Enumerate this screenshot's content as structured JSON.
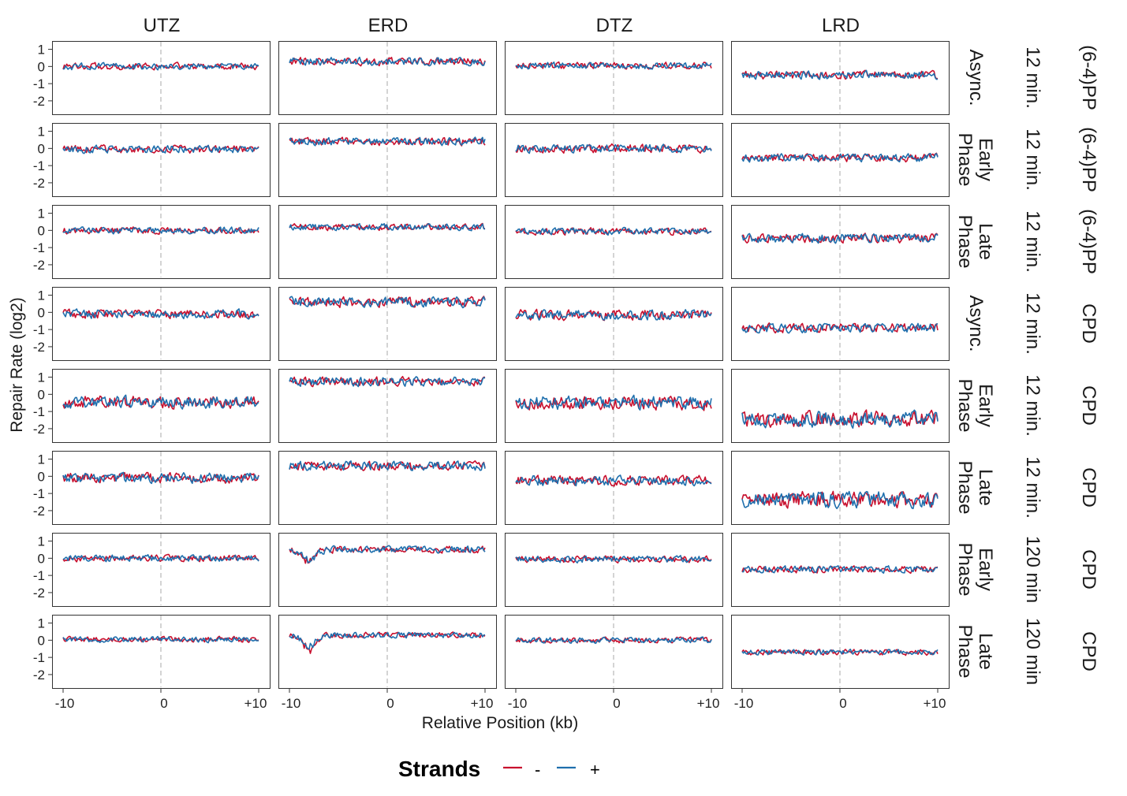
{
  "chart_data": {
    "type": "line",
    "facet_columns": [
      "UTZ",
      "ERD",
      "DTZ",
      "LRD"
    ],
    "facet_rows": [
      {
        "phase": [
          "Async."
        ],
        "time": "12 min.",
        "damage": "(6-4)PP"
      },
      {
        "phase": [
          "Early",
          "Phase"
        ],
        "time": "12 min.",
        "damage": "(6-4)PP"
      },
      {
        "phase": [
          "Late",
          "Phase"
        ],
        "time": "12 min.",
        "damage": "(6-4)PP"
      },
      {
        "phase": [
          "Async."
        ],
        "time": "12 min.",
        "damage": "CPD"
      },
      {
        "phase": [
          "Early",
          "Phase"
        ],
        "time": "12 min.",
        "damage": "CPD"
      },
      {
        "phase": [
          "Late",
          "Phase"
        ],
        "time": "12 min.",
        "damage": "CPD"
      },
      {
        "phase": [
          "Early",
          "Phase"
        ],
        "time": "120 min",
        "damage": "CPD"
      },
      {
        "phase": [
          "Late",
          "Phase"
        ],
        "time": "120 min",
        "damage": "CPD"
      }
    ],
    "xlabel": "Relative Position (kb)",
    "ylabel": "Repair Rate (log2)",
    "xlim": [
      -10,
      10
    ],
    "ylim": [
      -2.6,
      1.3
    ],
    "x_ticks": [
      -10,
      0,
      10
    ],
    "x_tick_labels": [
      "-10",
      "0",
      "+10"
    ],
    "y_ticks": [
      1,
      0,
      -1,
      -2
    ],
    "y_tick_labels": [
      "1",
      "0",
      "-1",
      "-2"
    ],
    "reference_line_x": 0,
    "grid": false,
    "legend": {
      "title": "Strands",
      "position": "bottom",
      "entries": [
        {
          "label": "-",
          "color": "#c8102e"
        },
        {
          "label": "+",
          "color": "#1f6fad"
        }
      ]
    },
    "series_levels": [
      [
        {
          "base": 0.0,
          "amp": 0.12
        },
        {
          "base": 0.3,
          "amp": 0.14
        },
        {
          "base": 0.05,
          "amp": 0.12
        },
        {
          "base": -0.5,
          "amp": 0.14
        }
      ],
      [
        {
          "base": -0.05,
          "amp": 0.14
        },
        {
          "base": 0.4,
          "amp": 0.14
        },
        {
          "base": 0.0,
          "amp": 0.15
        },
        {
          "base": -0.55,
          "amp": 0.14
        }
      ],
      [
        {
          "base": 0.0,
          "amp": 0.12
        },
        {
          "base": 0.2,
          "amp": 0.12
        },
        {
          "base": -0.05,
          "amp": 0.12
        },
        {
          "base": -0.45,
          "amp": 0.16
        }
      ],
      [
        {
          "base": -0.1,
          "amp": 0.16
        },
        {
          "base": 0.6,
          "amp": 0.18
        },
        {
          "base": -0.15,
          "amp": 0.18
        },
        {
          "base": -0.9,
          "amp": 0.16
        }
      ],
      [
        {
          "base": -0.45,
          "amp": 0.22
        },
        {
          "base": 0.75,
          "amp": 0.16
        },
        {
          "base": -0.5,
          "amp": 0.24
        },
        {
          "base": -1.45,
          "amp": 0.28
        }
      ],
      [
        {
          "base": -0.1,
          "amp": 0.18
        },
        {
          "base": 0.6,
          "amp": 0.16
        },
        {
          "base": -0.25,
          "amp": 0.18
        },
        {
          "base": -1.35,
          "amp": 0.28
        }
      ],
      [
        {
          "base": 0.0,
          "amp": 0.12
        },
        {
          "base": 0.5,
          "amp": 0.12,
          "dip": {
            "x": -8,
            "depth": -0.7
          }
        },
        {
          "base": -0.05,
          "amp": 0.12
        },
        {
          "base": -0.65,
          "amp": 0.12
        }
      ],
      [
        {
          "base": 0.05,
          "amp": 0.1
        },
        {
          "base": 0.3,
          "amp": 0.1,
          "dip": {
            "x": -8,
            "depth": -0.8
          }
        },
        {
          "base": 0.0,
          "amp": 0.1
        },
        {
          "base": -0.7,
          "amp": 0.1
        }
      ]
    ],
    "points_per_series": 160
  }
}
